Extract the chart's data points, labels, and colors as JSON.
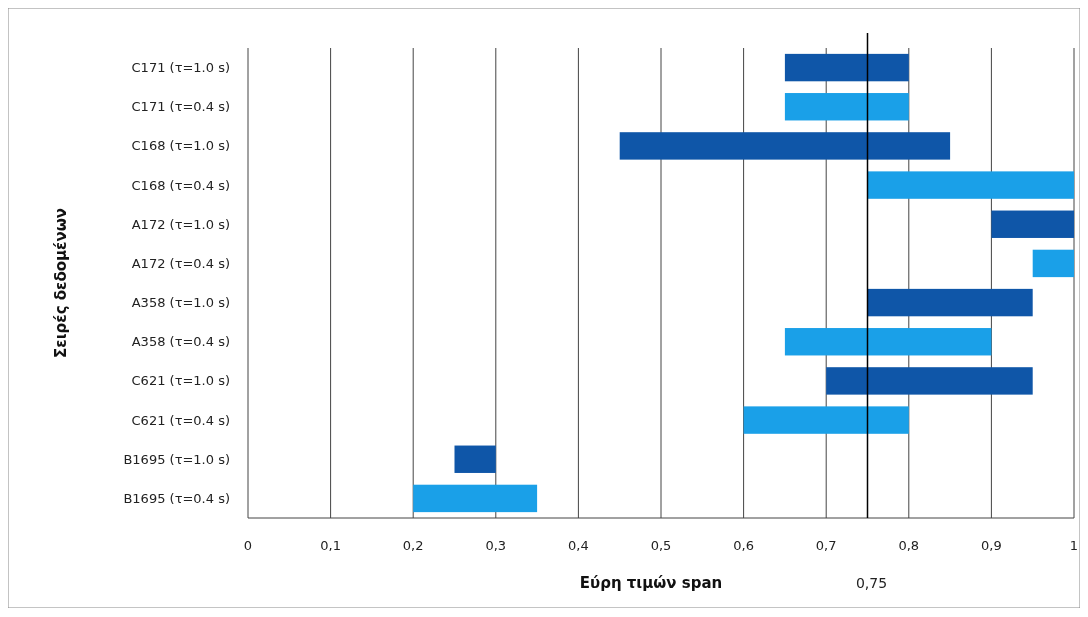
{
  "chart_data": {
    "type": "bar",
    "orientation": "horizontal",
    "xlabel": "Εύρη τιμών span",
    "ylabel": "Σειρές δεδομένων",
    "categories": [
      "C171 (τ=1.0 s)",
      "C171 (τ=0.4 s)",
      "C168 (τ=1.0 s)",
      "C168 (τ=0.4 s)",
      "A172 (τ=1.0 s)",
      "A172 (τ=0.4 s)",
      "A358 (τ=1.0 s)",
      "A358 (τ=0.4 s)",
      "C621 (τ=1.0 s)",
      "C621 (τ=0.4 s)",
      "B1695 (τ=1.0 s)",
      "B1695 (τ=0.4 s)"
    ],
    "base": [
      0.65,
      0.65,
      0.45,
      0.75,
      0.9,
      0.95,
      0.75,
      0.65,
      0.7,
      0.6,
      0.25,
      0.2
    ],
    "values": [
      0.15,
      0.15,
      0.4,
      0.25,
      0.1,
      0.05,
      0.2,
      0.25,
      0.25,
      0.2,
      0.05,
      0.15
    ],
    "colors": [
      "#0f56a8",
      "#1aa0e8",
      "#0f56a8",
      "#1aa0e8",
      "#0f56a8",
      "#1aa0e8",
      "#0f56a8",
      "#1aa0e8",
      "#0f56a8",
      "#1aa0e8",
      "#0f56a8",
      "#1aa0e8"
    ],
    "xlim": [
      0,
      1
    ],
    "xticks": [
      0,
      {
        "value": 0.1,
        "label": "0,1"
      },
      {
        "value": 0.2,
        "label": "0,2"
      },
      {
        "value": 0.3,
        "label": "0,3"
      },
      {
        "value": 0.4,
        "label": "0,4"
      },
      {
        "value": 0.5,
        "label": "0,5"
      },
      {
        "value": 0.6,
        "label": "0,6"
      },
      {
        "value": 0.7,
        "label": "0,7"
      },
      {
        "value": 0.8,
        "label": "0,8"
      },
      {
        "value": 0.9,
        "label": "0,9"
      },
      1
    ],
    "grid": "x",
    "ref_lines": [
      {
        "axis": "x",
        "value": 0.75,
        "label": "0,75",
        "color": "#000000"
      }
    ]
  }
}
